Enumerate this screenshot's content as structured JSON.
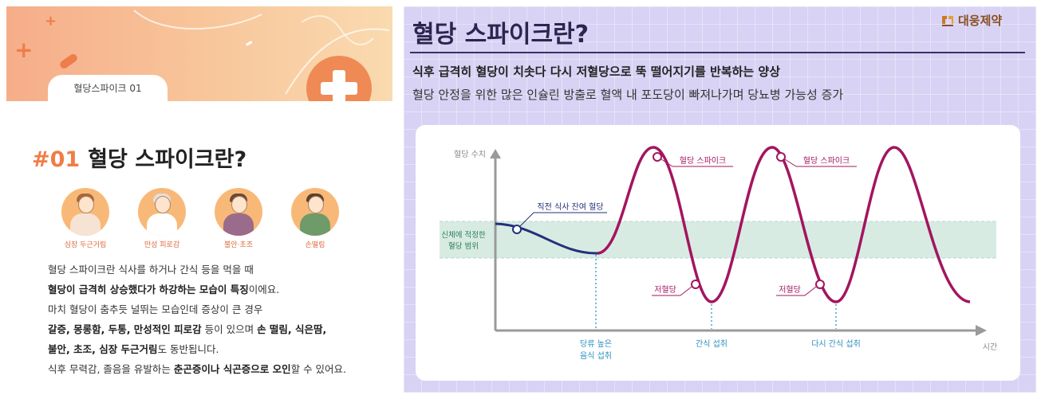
{
  "left_panel": {
    "tab_label": "혈당스파이크 01",
    "title_number": "#01",
    "title_text": "혈당 스파이크란?",
    "symptoms": [
      {
        "label": "심장 두근거림",
        "icon": "person-hand-on-chest-icon"
      },
      {
        "label": "만성 피로감",
        "icon": "person-tired-icon"
      },
      {
        "label": "불안·초조",
        "icon": "person-anxious-icon"
      },
      {
        "label": "손떨림",
        "icon": "person-shaking-hands-icon"
      }
    ],
    "paragraph": [
      {
        "pre": "혈당 스파이크란 식사를 하거나 간식 등을 먹을 때",
        "bold": "",
        "post": ""
      },
      {
        "pre": "",
        "bold": "혈당이 급격히 상승했다가 하강하는 모습이 특징",
        "post": "이에요."
      },
      {
        "pre": "마치 혈당이 춤추듯 널뛰는 모습인데 증상이 큰 경우",
        "bold": "",
        "post": ""
      },
      {
        "pre": "",
        "bold": "갈증, 몽롱함, 두통, 만성적인 피로감",
        "post": " 등이 있으며 ",
        "bold2": "손 떨림, 식은땀,"
      },
      {
        "pre": "",
        "bold": "불안, 초조, 심장 두근거림",
        "post": "도 동반됩니다."
      },
      {
        "pre": "식후 무력감, 졸음을 유발하는 ",
        "bold": "춘곤증이나 식곤증으로 오인",
        "post": "할 수 있어요."
      }
    ],
    "colors": {
      "accent": "#ef7d47",
      "header_gradient_start": "#f6ad8a",
      "header_gradient_end": "#fadab0"
    }
  },
  "right_panel": {
    "title": "혈당 스파이크란?",
    "brand": {
      "name": "대웅제약",
      "icon": "daewoong-logo-icon"
    },
    "subtitle_bold": "식후 급격히 혈당이 치솟다 다시 저혈당으로 뚝 떨어지기를 반복하는 양상",
    "subtitle": "혈당 안정을 위한 많은 인슐린 방출로 혈액 내 포도당이 빠져나가며 당뇨병 가능성 증가",
    "colors": {
      "background": "#d8d3f4",
      "curve_main": "#a3155f",
      "curve_pre": "#23307a",
      "band": "#d8ebe3",
      "event_line": "#3fa6d8",
      "annotation_marker": "#a3155f"
    }
  },
  "chart_data": {
    "type": "line",
    "title": "",
    "xlabel": "시간",
    "ylabel": "혈당 수치",
    "band_label": [
      "신체에 적정한",
      "혈당 범위"
    ],
    "x_event_labels": [
      {
        "lines": [
          "당류 높은",
          "음식 섭취"
        ]
      },
      {
        "lines": [
          "간식 섭취"
        ]
      },
      {
        "lines": [
          "다시 간식 섭취"
        ]
      }
    ],
    "annotations": [
      "직전 식사 잔여 혈당",
      "혈당 스파이크",
      "혈당 스파이크",
      "저혈당",
      "저혈당"
    ],
    "grid": false,
    "legend": "none"
  }
}
